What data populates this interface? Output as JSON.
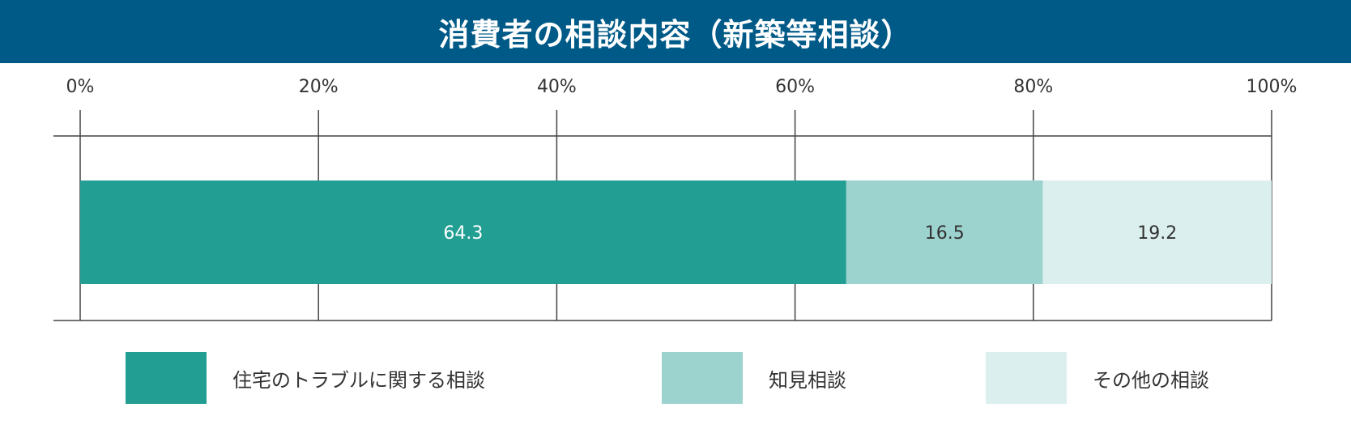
{
  "title": "消費者の相談内容（新築等相談）",
  "chart_data": {
    "type": "bar",
    "orientation": "horizontal",
    "stacked": true,
    "categories": [
      ""
    ],
    "series": [
      {
        "name": "住宅のトラブルに関する相談",
        "values": [
          64.3
        ],
        "color": "#239e93",
        "label_color": "#ffffff"
      },
      {
        "name": "知見相談",
        "values": [
          16.5
        ],
        "color": "#9dd3cf",
        "label_color": "#333333"
      },
      {
        "name": "その他の相談",
        "values": [
          19.2
        ],
        "color": "#dbefee",
        "label_color": "#333333"
      }
    ],
    "xlim": [
      0,
      100
    ],
    "xticks": [
      0,
      20,
      40,
      60,
      80,
      100
    ],
    "xtick_labels": [
      "0%",
      "20%",
      "40%",
      "60%",
      "80%",
      "100%"
    ],
    "grid": true,
    "legend_position": "bottom"
  }
}
